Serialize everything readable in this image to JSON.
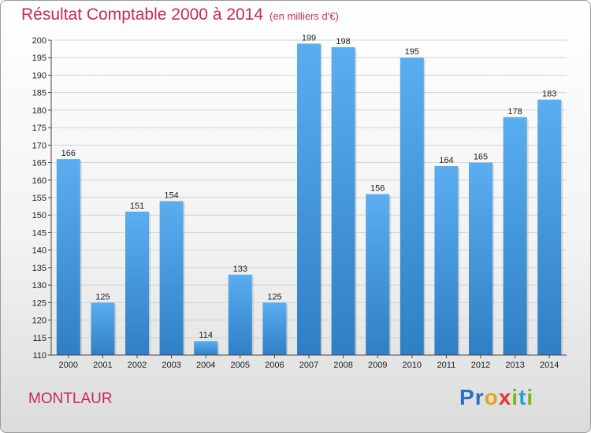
{
  "header": {
    "title": "Résultat Comptable 2000 à 2014",
    "subtitle": "(en milliers d'€)"
  },
  "commune": "MONTLAUR",
  "logo": {
    "letters": [
      "P",
      "r",
      "o",
      "x",
      "i",
      "t",
      "i"
    ],
    "colors": [
      "#2a6fc4",
      "#2a6fc4",
      "#e9a21d",
      "#e23a2c",
      "#7ab51d",
      "#2a9fd8",
      "#7ab51d"
    ]
  },
  "chart_data": {
    "type": "bar",
    "title": "Résultat Comptable 2000 à 2014",
    "subtitle": "(en milliers d'€)",
    "xlabel": "",
    "ylabel": "",
    "categories": [
      "2000",
      "2001",
      "2002",
      "2003",
      "2004",
      "2005",
      "2006",
      "2007",
      "2008",
      "2009",
      "2010",
      "2011",
      "2012",
      "2013",
      "2014"
    ],
    "values": [
      166,
      125,
      151,
      154,
      114,
      133,
      125,
      199,
      198,
      156,
      195,
      164,
      165,
      178,
      183
    ],
    "ylim": [
      110,
      200
    ],
    "ytick_step": 5,
    "grid": true,
    "bar_color_top": "#5aaef0",
    "bar_color_bottom": "#2f7fc5"
  }
}
